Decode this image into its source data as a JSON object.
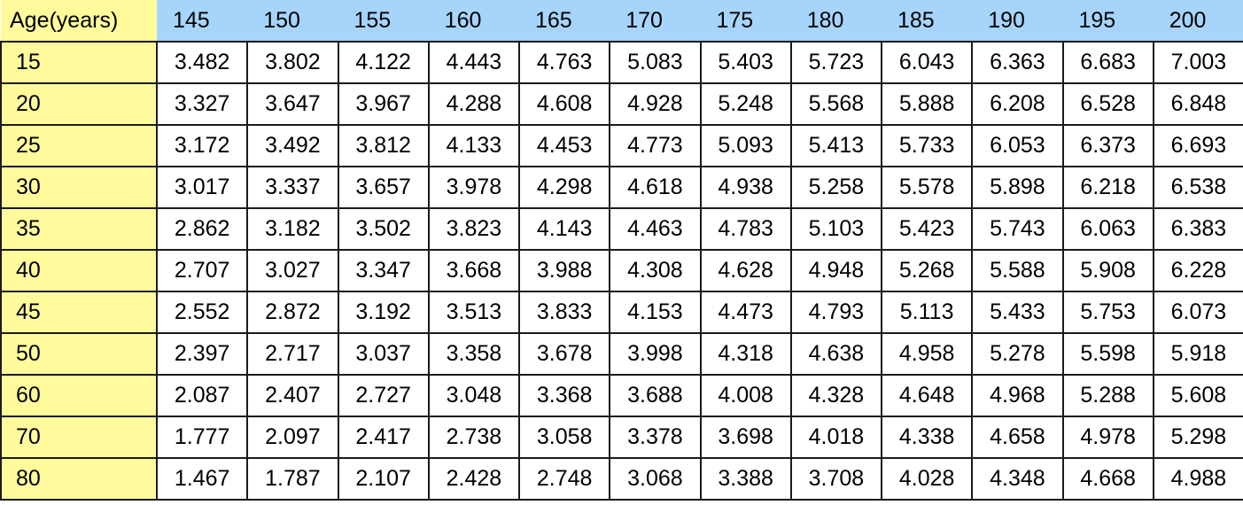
{
  "colors": {
    "header_row_bg": "#a6d4fb",
    "header_col_bg": "#fffb9d",
    "cell_bg": "#ffffff",
    "grid_line": "#1a1a1a"
  },
  "chart_data": {
    "type": "table",
    "row_header_label": "Age(years)",
    "columns": [
      "145",
      "150",
      "155",
      "160",
      "165",
      "170",
      "175",
      "180",
      "185",
      "190",
      "195",
      "200"
    ],
    "rows": [
      {
        "age": "15",
        "values": [
          "3.482",
          "3.802",
          "4.122",
          "4.443",
          "4.763",
          "5.083",
          "5.403",
          "5.723",
          "6.043",
          "6.363",
          "6.683",
          "7.003"
        ]
      },
      {
        "age": "20",
        "values": [
          "3.327",
          "3.647",
          "3.967",
          "4.288",
          "4.608",
          "4.928",
          "5.248",
          "5.568",
          "5.888",
          "6.208",
          "6.528",
          "6.848"
        ]
      },
      {
        "age": "25",
        "values": [
          "3.172",
          "3.492",
          "3.812",
          "4.133",
          "4.453",
          "4.773",
          "5.093",
          "5.413",
          "5.733",
          "6.053",
          "6.373",
          "6.693"
        ]
      },
      {
        "age": "30",
        "values": [
          "3.017",
          "3.337",
          "3.657",
          "3.978",
          "4.298",
          "4.618",
          "4.938",
          "5.258",
          "5.578",
          "5.898",
          "6.218",
          "6.538"
        ]
      },
      {
        "age": "35",
        "values": [
          "2.862",
          "3.182",
          "3.502",
          "3.823",
          "4.143",
          "4.463",
          "4.783",
          "5.103",
          "5.423",
          "5.743",
          "6.063",
          "6.383"
        ]
      },
      {
        "age": "40",
        "values": [
          "2.707",
          "3.027",
          "3.347",
          "3.668",
          "3.988",
          "4.308",
          "4.628",
          "4.948",
          "5.268",
          "5.588",
          "5.908",
          "6.228"
        ]
      },
      {
        "age": "45",
        "values": [
          "2.552",
          "2.872",
          "3.192",
          "3.513",
          "3.833",
          "4.153",
          "4.473",
          "4.793",
          "5.113",
          "5.433",
          "5.753",
          "6.073"
        ]
      },
      {
        "age": "50",
        "values": [
          "2.397",
          "2.717",
          "3.037",
          "3.358",
          "3.678",
          "3.998",
          "4.318",
          "4.638",
          "4.958",
          "5.278",
          "5.598",
          "5.918"
        ]
      },
      {
        "age": "60",
        "values": [
          "2.087",
          "2.407",
          "2.727",
          "3.048",
          "3.368",
          "3.688",
          "4.008",
          "4.328",
          "4.648",
          "4.968",
          "5.288",
          "5.608"
        ]
      },
      {
        "age": "70",
        "values": [
          "1.777",
          "2.097",
          "2.417",
          "2.738",
          "3.058",
          "3.378",
          "3.698",
          "4.018",
          "4.338",
          "4.658",
          "4.978",
          "5.298"
        ]
      },
      {
        "age": "80",
        "values": [
          "1.467",
          "1.787",
          "2.107",
          "2.428",
          "2.748",
          "3.068",
          "3.388",
          "3.708",
          "4.028",
          "4.348",
          "4.668",
          "4.988"
        ]
      }
    ]
  }
}
